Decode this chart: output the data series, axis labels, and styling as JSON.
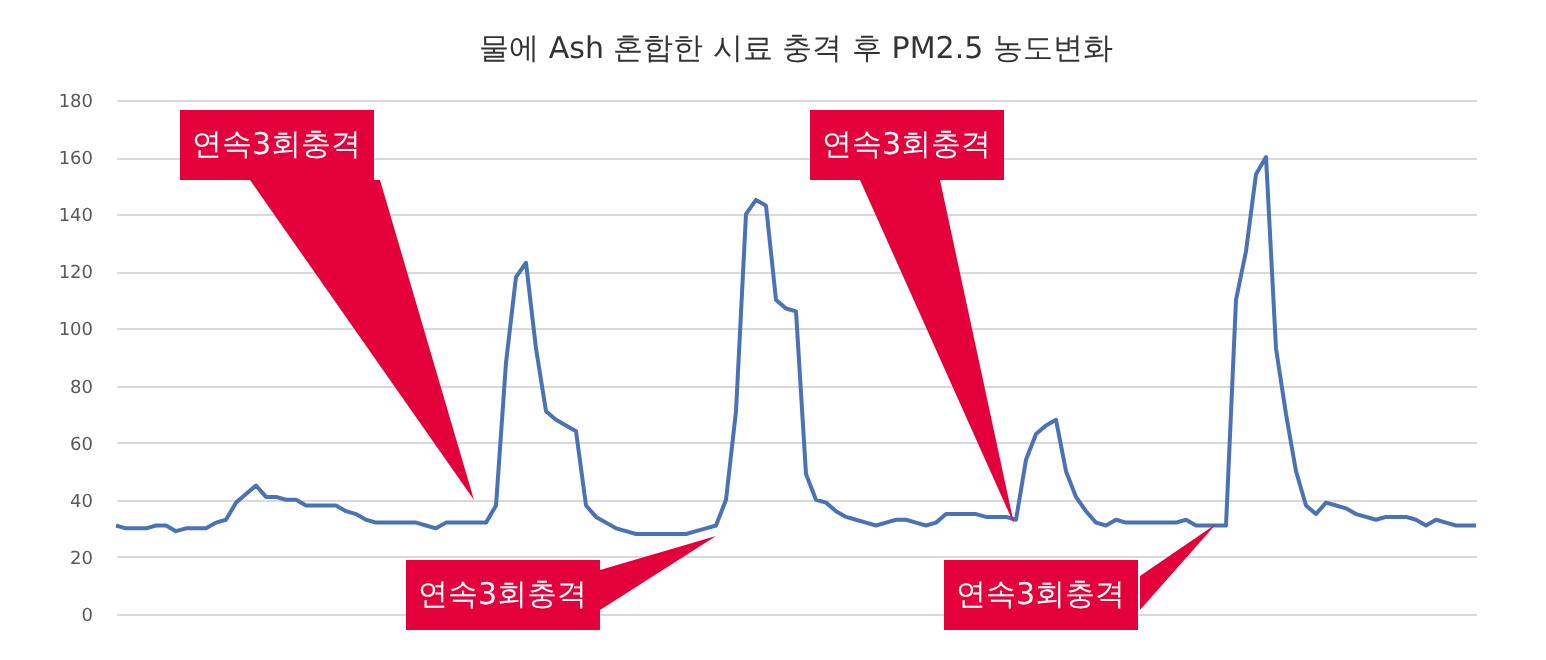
{
  "chart_data": {
    "type": "line",
    "title": "물에 Ash 혼합한 시료 충격 후 PM2.5 농도변화",
    "categories": [
      null,
      null,
      null,
      null,
      null,
      null,
      null,
      null,
      null,
      null,
      null,
      null,
      null,
      null,
      null,
      null,
      null,
      null,
      null,
      null,
      null,
      null,
      null,
      null,
      null,
      null,
      null,
      null,
      null,
      null,
      null,
      null,
      null,
      null,
      null,
      null,
      null,
      null,
      null,
      null,
      null,
      null,
      null,
      null,
      null,
      null,
      null,
      null,
      null,
      null,
      null,
      null,
      null,
      null,
      null,
      null,
      null,
      null,
      null,
      null,
      null,
      null,
      null,
      null,
      null,
      null,
      null,
      null,
      null,
      null,
      null,
      null,
      null,
      null,
      null,
      null,
      null,
      null,
      null,
      null,
      null,
      null,
      null,
      null,
      null,
      null,
      null,
      null,
      null,
      null,
      null,
      null,
      null,
      null,
      null,
      null,
      null,
      null,
      null,
      null,
      null,
      null,
      null,
      null,
      null,
      null,
      null,
      null,
      null,
      null,
      null,
      null,
      null,
      null,
      null,
      null,
      null,
      null,
      null,
      null,
      null,
      null,
      null,
      null,
      null,
      null,
      null,
      null,
      null,
      null,
      null,
      null,
      null,
      null,
      null,
      null,
      null
    ],
    "series": [
      {
        "color": "#4a72b5",
        "values": [
          31,
          30,
          30,
          30,
          31,
          31,
          29,
          30,
          30,
          30,
          32,
          33,
          39,
          42,
          45,
          41,
          41,
          40,
          40,
          38,
          38,
          38,
          38,
          36,
          35,
          33,
          32,
          32,
          32,
          32,
          32,
          31,
          30,
          32,
          32,
          32,
          32,
          32,
          38,
          88,
          118,
          123,
          93,
          71,
          68,
          66,
          64,
          38,
          34,
          32,
          30,
          29,
          28,
          28,
          28,
          28,
          28,
          28,
          29,
          30,
          31,
          40,
          71,
          140,
          145,
          143,
          110,
          107,
          106,
          49,
          40,
          39,
          36,
          34,
          33,
          32,
          31,
          32,
          33,
          33,
          32,
          31,
          32,
          35,
          35,
          35,
          35,
          34,
          34,
          34,
          33,
          54,
          63,
          66,
          68,
          50,
          41,
          36,
          32,
          31,
          33,
          32,
          32,
          32,
          32,
          32,
          32,
          33,
          31,
          31,
          31,
          31,
          110,
          127,
          154,
          160,
          93,
          70,
          50,
          38,
          35,
          39,
          38,
          37,
          35,
          34,
          33,
          34,
          34,
          34,
          33,
          31,
          33,
          32,
          31,
          31,
          31
        ]
      }
    ],
    "ylim": [
      0,
      180
    ],
    "yticks": [
      0,
      20,
      40,
      60,
      80,
      100,
      120,
      140,
      160,
      180
    ],
    "grid": "y",
    "tick_labels": "y",
    "annotations": [
      "연속3회충격",
      "연속3회충격",
      "연속3회충격",
      "연속3회충격"
    ]
  }
}
